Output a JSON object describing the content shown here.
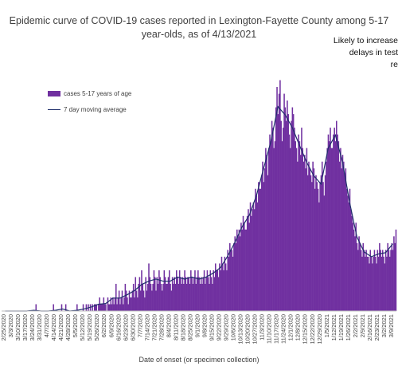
{
  "title_line1": "Epidemic curve of COVID-19 cases reported in Lexington-Fayette County among 5-17",
  "title_line2": "year-olds, as of 4/13/2021",
  "annotation": {
    "line1": "Likely to increase",
    "line2": "delays in test",
    "line3": "re"
  },
  "colors": {
    "bars": "#7030a0",
    "moving_average": "#1f2f6b"
  },
  "chart_data": {
    "type": "bar",
    "title": "Epidemic curve of COVID-19 cases reported in Lexington-Fayette County among 5-17 year-olds, as of 4/13/2021",
    "xlabel": "Date of onset (or specimen collection)",
    "ylabel": "",
    "x_range": [
      "2020-02-25",
      "2021-03-09"
    ],
    "tick_labels": [
      "2/25/2020",
      "3/3/2020",
      "3/10/2020",
      "3/17/2020",
      "3/24/2020",
      "3/31/2020",
      "4/7/2020",
      "4/14/2020",
      "4/21/2020",
      "4/28/2020",
      "5/5/2020",
      "5/12/2020",
      "5/19/2020",
      "5/26/2020",
      "6/2/2020",
      "6/9/2020",
      "6/16/2020",
      "6/23/2020",
      "6/30/2020",
      "7/7/2020",
      "7/14/2020",
      "7/21/2020",
      "7/28/2020",
      "8/4/2020",
      "8/11/2020",
      "8/18/2020",
      "8/25/2020",
      "9/1/2020",
      "9/8/2020",
      "9/15/2020",
      "9/22/2020",
      "9/29/2020",
      "10/6/2020",
      "10/13/2020",
      "10/20/2020",
      "10/27/2020",
      "11/3/2020",
      "11/10/2020",
      "11/17/2020",
      "11/24/2020",
      "12/1/2020",
      "12/8/2020",
      "12/15/2020",
      "12/22/2020",
      "12/29/2020",
      "1/5/2021",
      "1/12/2021",
      "1/19/2021",
      "1/26/2021",
      "2/2/2021",
      "2/9/2021",
      "2/16/2021",
      "2/23/2021",
      "3/2/2021",
      "3/9/2021"
    ],
    "legend": {
      "placement": "top-left"
    },
    "grid": false,
    "series": [
      {
        "name": "cases 5-17 years of age",
        "kind": "bar",
        "weekly_daily_values": [
          [
            0,
            0,
            0,
            0,
            0,
            0,
            0
          ],
          [
            0,
            0,
            0,
            0,
            0,
            0,
            0
          ],
          [
            0,
            0,
            0,
            0,
            0,
            0,
            0
          ],
          [
            0,
            0,
            0,
            0,
            0,
            0,
            0
          ],
          [
            0,
            0,
            0,
            0,
            0,
            1,
            0
          ],
          [
            0,
            0,
            0,
            0,
            0,
            0,
            0
          ],
          [
            0,
            0,
            0,
            0,
            0,
            0,
            0
          ],
          [
            0,
            1,
            0,
            0,
            0,
            0,
            0
          ],
          [
            0,
            0,
            1,
            0,
            0,
            0,
            1
          ],
          [
            0,
            0,
            0,
            0,
            0,
            0,
            0
          ],
          [
            0,
            0,
            0,
            1,
            0,
            0,
            0
          ],
          [
            0,
            0,
            1,
            0,
            0,
            1,
            0
          ],
          [
            1,
            0,
            1,
            0,
            1,
            0,
            1
          ],
          [
            1,
            1,
            0,
            1,
            2,
            1,
            1
          ],
          [
            1,
            2,
            1,
            1,
            0,
            2,
            1
          ],
          [
            1,
            2,
            1,
            2,
            1,
            2,
            4
          ],
          [
            1,
            2,
            3,
            1,
            2,
            3,
            1
          ],
          [
            2,
            4,
            3,
            2,
            1,
            3,
            2
          ],
          [
            2,
            3,
            4,
            2,
            5,
            3,
            2
          ],
          [
            4,
            5,
            3,
            6,
            4,
            3,
            2
          ],
          [
            5,
            3,
            4,
            7,
            5,
            4,
            3
          ],
          [
            4,
            6,
            5,
            3,
            5,
            4,
            6
          ],
          [
            5,
            4,
            3,
            4,
            6,
            5,
            4
          ],
          [
            4,
            5,
            6,
            4,
            3,
            5,
            4
          ],
          [
            5,
            4,
            6,
            5,
            4,
            6,
            5
          ],
          [
            4,
            5,
            4,
            6,
            5,
            4,
            5
          ],
          [
            5,
            4,
            6,
            5,
            4,
            5,
            6
          ],
          [
            4,
            5,
            6,
            5,
            4,
            5,
            4
          ],
          [
            5,
            6,
            4,
            5,
            6,
            5,
            4
          ],
          [
            6,
            5,
            4,
            6,
            5,
            7,
            6
          ],
          [
            6,
            5,
            7,
            6,
            8,
            7,
            6
          ],
          [
            8,
            7,
            6,
            9,
            8,
            10,
            9
          ],
          [
            9,
            8,
            10,
            11,
            10,
            12,
            11
          ],
          [
            12,
            11,
            13,
            12,
            14,
            13,
            12
          ],
          [
            12,
            14,
            15,
            13,
            16,
            14,
            15
          ],
          [
            16,
            15,
            18,
            17,
            16,
            19,
            18
          ],
          [
            18,
            20,
            22,
            19,
            21,
            24,
            23
          ],
          [
            20,
            24,
            26,
            25,
            28,
            27,
            24
          ],
          [
            25,
            30,
            33,
            29,
            32,
            34,
            28
          ],
          [
            25,
            27,
            32,
            30,
            28,
            31,
            29
          ],
          [
            26,
            24,
            28,
            30,
            29,
            27,
            25
          ],
          [
            24,
            22,
            26,
            25,
            23,
            27,
            24
          ],
          [
            22,
            23,
            21,
            24,
            20,
            22,
            21
          ],
          [
            20,
            19,
            22,
            21,
            18,
            20,
            19
          ],
          [
            18,
            16,
            19,
            20,
            22,
            19,
            17
          ],
          [
            20,
            22,
            24,
            26,
            25,
            27,
            24
          ],
          [
            24,
            26,
            27,
            25,
            28,
            26,
            25
          ],
          [
            22,
            24,
            21,
            23,
            22,
            20,
            21
          ],
          [
            18,
            17,
            16,
            18,
            15,
            14,
            13
          ],
          [
            12,
            11,
            13,
            10,
            9,
            11,
            10
          ],
          [
            9,
            8,
            10,
            9,
            8,
            9,
            8
          ],
          [
            8,
            7,
            9,
            8,
            7,
            8,
            9
          ],
          [
            8,
            7,
            9,
            8,
            10,
            9,
            8
          ],
          [
            9,
            8,
            7,
            9,
            8,
            10,
            9
          ],
          [
            8,
            9,
            10,
            9,
            11,
            10,
            12
          ]
        ]
      },
      {
        "name": "7 day moving average",
        "kind": "line",
        "weekly_values": [
          0,
          0,
          0,
          0,
          0.1,
          0,
          0,
          0.1,
          0.3,
          0,
          0.1,
          0.3,
          0.6,
          1.0,
          1.1,
          1.9,
          1.9,
          2.4,
          3.0,
          3.9,
          4.4,
          4.7,
          4.4,
          4.4,
          5.0,
          4.7,
          5.0,
          4.7,
          5.0,
          5.6,
          6.4,
          8.1,
          10.1,
          12.4,
          14.1,
          17.0,
          21.0,
          24.9,
          30.1,
          28.9,
          27.0,
          24.4,
          21.9,
          19.9,
          18.7,
          24.0,
          25.9,
          21.9,
          15.9,
          10.9,
          8.7,
          8.0,
          8.4,
          8.6,
          9.9
        ]
      }
    ],
    "ylim": [
      0,
      35
    ]
  }
}
